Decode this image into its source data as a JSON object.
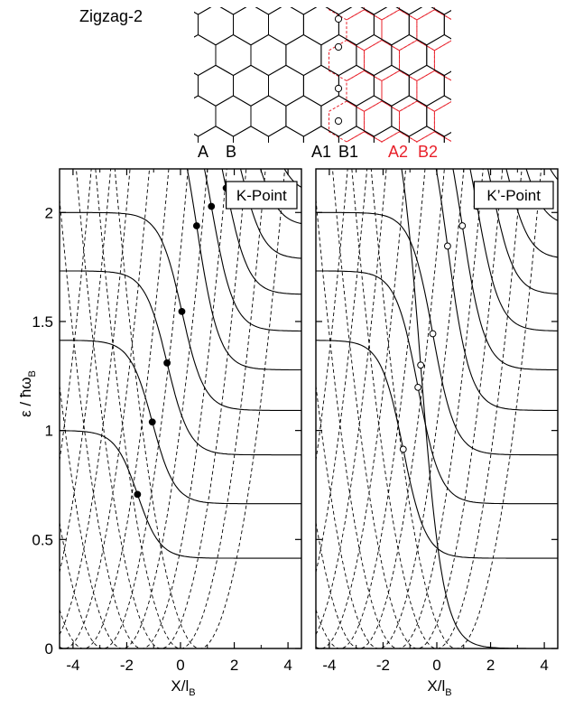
{
  "figure_title": "Zigzag-2",
  "lattice": {
    "labels_black": [
      "A",
      "B",
      "A1",
      "B1"
    ],
    "labels_red": [
      "A2",
      "B2"
    ],
    "red_color": "#e8202a"
  },
  "chart_data": [
    {
      "type": "line",
      "panel": "K-Point",
      "title": "K-Point",
      "xlabel": "X/l_B",
      "ylabel": "ε / ħω_B",
      "xlim": [
        -4.5,
        4.5
      ],
      "ylim": [
        0,
        2.2
      ],
      "xticks": [
        -4,
        -2,
        0,
        2,
        4
      ],
      "yticks": [
        0,
        0.5,
        1,
        1.5,
        2
      ],
      "grid": false,
      "landau_levels": {
        "left_edge": [
          1.0,
          1.414,
          1.732,
          2.0
        ],
        "right_edge": [
          0.414,
          0.664,
          0.888,
          1.092,
          1.278,
          1.456,
          1.624,
          1.786,
          1.938,
          2.085
        ]
      },
      "dashed_parabolas": [
        {
          "center": -3.2,
          "y_min": 0.0
        },
        {
          "center": 0.4,
          "y_min": 0.0
        }
      ],
      "marker_style": "filled"
    },
    {
      "type": "line",
      "panel": "K'-Point",
      "title": "K’-Point",
      "xlabel": "X/l_B",
      "xlim": [
        -4.5,
        4.5
      ],
      "ylim": [
        0,
        2.2
      ],
      "xticks": [
        -4,
        -2,
        0,
        2,
        4
      ],
      "grid": false,
      "landau_levels": {
        "left_edge": [
          1.414,
          1.732,
          2.0
        ],
        "right_edge": [
          0.0,
          0.414,
          0.664,
          0.888,
          1.092,
          1.278,
          1.456,
          1.624,
          1.786,
          1.938,
          2.085
        ]
      },
      "marker_style": "open"
    }
  ],
  "labels": {
    "xlabel_main": "X/l",
    "xlabel_sub": "B",
    "ylabel_main": "ε / ħω",
    "ylabel_sub": "B"
  }
}
